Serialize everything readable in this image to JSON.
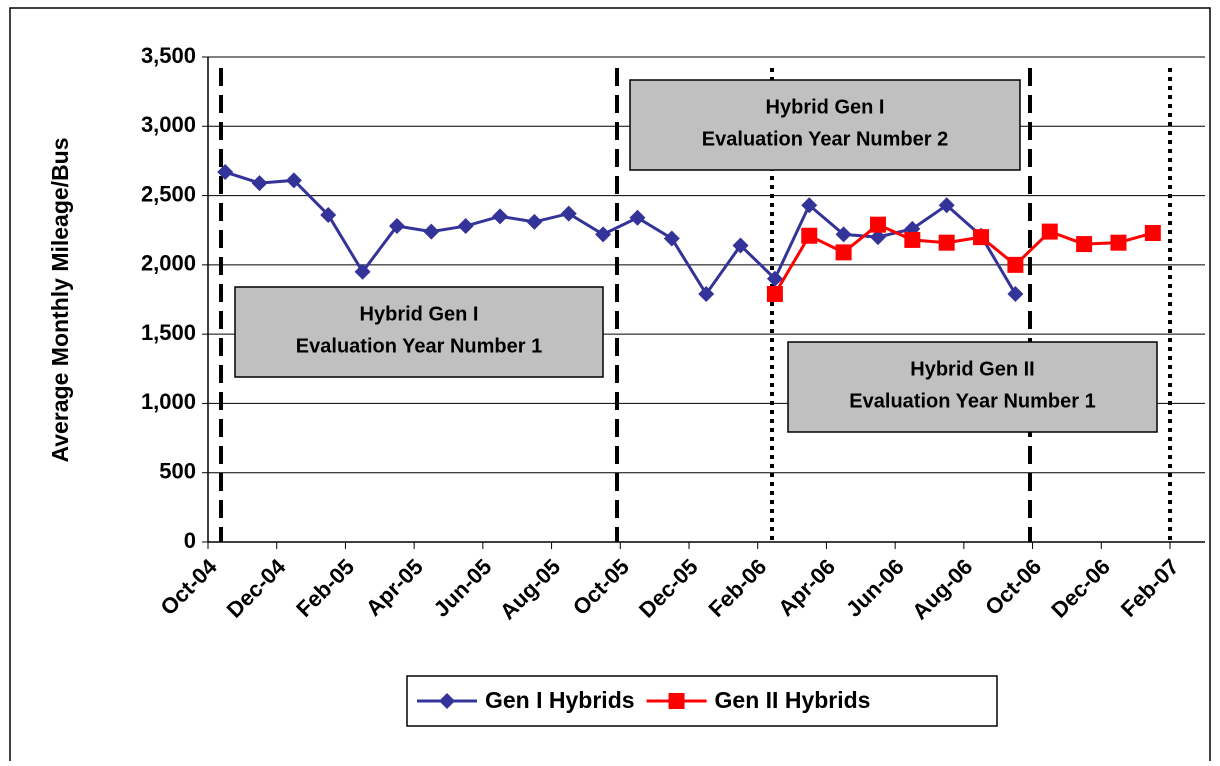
{
  "chart_data": {
    "type": "line",
    "y_label": "Average Monthly Mileage/Bus",
    "categories": [
      "Oct-04",
      null,
      "Dec-04",
      null,
      "Feb-05",
      null,
      "Apr-05",
      null,
      "Jun-05",
      null,
      "Aug-05",
      null,
      "Oct-05",
      null,
      "Dec-05",
      null,
      "Feb-06",
      null,
      "Apr-06",
      null,
      "Jun-06",
      null,
      "Aug-06",
      null,
      "Oct-06",
      null,
      "Dec-06",
      null,
      "Feb-07"
    ],
    "series": [
      {
        "name": "Gen I Hybrids",
        "color": "#333399",
        "marker": "diamond",
        "values": [
          2670,
          2590,
          2610,
          2360,
          1950,
          2280,
          2240,
          2280,
          2350,
          2310,
          2370,
          2220,
          2340,
          2190,
          1790,
          2140,
          1900,
          2430,
          2220,
          2200,
          2260,
          2430,
          2210,
          1790,
          null,
          null,
          null,
          null,
          null
        ]
      },
      {
        "name": "Gen II Hybrids",
        "color": "#ff0000",
        "marker": "square",
        "values": [
          null,
          null,
          null,
          null,
          null,
          null,
          null,
          null,
          null,
          null,
          null,
          null,
          null,
          null,
          null,
          null,
          1790,
          2210,
          2090,
          2290,
          2180,
          2160,
          2200,
          2000,
          2240,
          2150,
          2160,
          2230,
          null
        ]
      }
    ],
    "ylim": [
      0,
      3500
    ],
    "yticks": [
      0,
      500,
      {
        "value": 1000,
        "label": "1,000"
      },
      {
        "value": 1500,
        "label": "1,500"
      },
      {
        "value": 2000,
        "label": "2,000"
      },
      {
        "value": 2500,
        "label": "2,500"
      },
      {
        "value": 3000,
        "label": "3,000"
      },
      {
        "value": 3500,
        "label": "3,500"
      }
    ],
    "grid": true,
    "legend": "bottom",
    "annotations": [
      {
        "line1": "Hybrid Gen I",
        "line2": "Evaluation Year Number 1"
      },
      {
        "line1": "Hybrid Gen I",
        "line2": "Evaluation Year Number 2"
      },
      {
        "line1": "Hybrid Gen II",
        "line2": "Evaluation Year Number 1"
      }
    ]
  }
}
